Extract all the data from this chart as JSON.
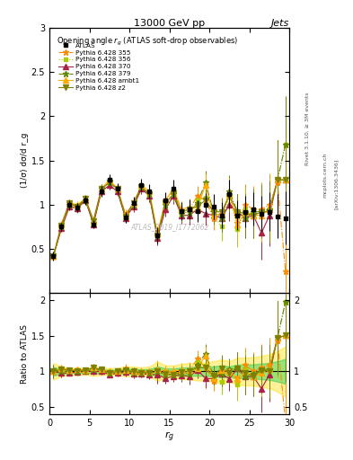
{
  "title_top": "13000 GeV pp",
  "title_right": "Jets",
  "plot_title": "Opening angle r_g (ATLAS soft-drop observables)",
  "xlabel": "r_g",
  "ylabel_main": "(1/σ) dσ/d r_g",
  "ylabel_ratio": "Ratio to ATLAS",
  "watermark": "ATLAS_2019_I1772062",
  "rivet_label": "Rivet 3.1.10, ≥ 3M events",
  "arxiv_label": "[arXiv:1306.3436]",
  "mcplots_label": "mcplots.cern.ch",
  "xlim": [
    0,
    30
  ],
  "ylim_main": [
    0,
    3.0
  ],
  "ylim_ratio": [
    0.4,
    2.1
  ],
  "xticks": [
    0,
    5,
    10,
    15,
    20,
    25,
    30
  ],
  "yticks_main": [
    0.5,
    1.0,
    1.5,
    2.0,
    2.5,
    3.0
  ],
  "yticks_ratio": [
    0.5,
    1.0,
    1.5,
    2.0
  ],
  "series": {
    "ATLAS": {
      "color": "#000000",
      "marker": "s",
      "markersize": 3.5,
      "linestyle": "none",
      "label": "ATLAS",
      "x": [
        0.5,
        1.5,
        2.5,
        3.5,
        4.5,
        5.5,
        6.5,
        7.5,
        8.5,
        9.5,
        10.5,
        11.5,
        12.5,
        13.5,
        14.5,
        15.5,
        16.5,
        17.5,
        18.5,
        19.5,
        20.5,
        21.5,
        22.5,
        23.5,
        24.5,
        25.5,
        26.5,
        27.5,
        28.5,
        29.5
      ],
      "y": [
        0.42,
        0.75,
        1.0,
        0.97,
        1.05,
        0.78,
        1.15,
        1.28,
        1.18,
        0.86,
        1.02,
        1.22,
        1.15,
        0.65,
        1.05,
        1.18,
        0.93,
        0.95,
        0.93,
        1.0,
        0.98,
        0.88,
        1.12,
        0.88,
        0.92,
        0.95,
        0.9,
        0.92,
        0.87,
        0.85
      ],
      "yerr": [
        0.05,
        0.05,
        0.05,
        0.05,
        0.05,
        0.05,
        0.06,
        0.06,
        0.06,
        0.06,
        0.07,
        0.07,
        0.08,
        0.09,
        0.09,
        0.1,
        0.1,
        0.11,
        0.12,
        0.13,
        0.14,
        0.15,
        0.16,
        0.17,
        0.18,
        0.19,
        0.2,
        0.22,
        0.25,
        0.3
      ]
    },
    "355": {
      "color": "#ff8c00",
      "marker": "*",
      "markersize": 5,
      "linestyle": "-.",
      "label": "Pythia 6.428 355",
      "x": [
        0.5,
        1.5,
        2.5,
        3.5,
        4.5,
        5.5,
        6.5,
        7.5,
        8.5,
        9.5,
        10.5,
        11.5,
        12.5,
        13.5,
        14.5,
        15.5,
        16.5,
        17.5,
        18.5,
        19.5,
        20.5,
        21.5,
        22.5,
        23.5,
        24.5,
        25.5,
        26.5,
        27.5,
        28.5,
        29.5
      ],
      "y": [
        0.42,
        0.78,
        1.02,
        0.98,
        1.05,
        0.8,
        1.18,
        1.25,
        1.18,
        0.9,
        1.0,
        1.2,
        1.12,
        0.65,
        1.05,
        1.15,
        0.92,
        0.95,
        1.1,
        1.05,
        0.85,
        0.9,
        1.1,
        0.8,
        1.0,
        0.95,
        0.95,
        1.0,
        1.25,
        0.25
      ],
      "yerr": [
        0.04,
        0.04,
        0.04,
        0.04,
        0.04,
        0.04,
        0.05,
        0.05,
        0.05,
        0.05,
        0.06,
        0.06,
        0.07,
        0.08,
        0.08,
        0.09,
        0.09,
        0.1,
        0.11,
        0.13,
        0.14,
        0.16,
        0.18,
        0.2,
        0.23,
        0.26,
        0.3,
        0.35,
        0.45,
        0.55
      ]
    },
    "356": {
      "color": "#aacc00",
      "marker": "s",
      "markersize": 3.5,
      "linestyle": ":",
      "label": "Pythia 6.428 356",
      "x": [
        0.5,
        1.5,
        2.5,
        3.5,
        4.5,
        5.5,
        6.5,
        7.5,
        8.5,
        9.5,
        10.5,
        11.5,
        12.5,
        13.5,
        14.5,
        15.5,
        16.5,
        17.5,
        18.5,
        19.5,
        20.5,
        21.5,
        22.5,
        23.5,
        24.5,
        25.5,
        26.5,
        27.5,
        28.5,
        29.5
      ],
      "y": [
        0.42,
        0.73,
        0.98,
        0.95,
        1.05,
        0.78,
        1.15,
        1.22,
        1.15,
        0.85,
        0.98,
        1.18,
        1.1,
        0.62,
        0.95,
        1.1,
        0.88,
        0.88,
        1.05,
        1.08,
        0.88,
        0.75,
        1.1,
        0.72,
        0.95,
        0.88,
        0.92,
        0.95,
        1.28,
        1.68
      ],
      "yerr": [
        0.04,
        0.04,
        0.04,
        0.04,
        0.04,
        0.04,
        0.05,
        0.05,
        0.05,
        0.05,
        0.06,
        0.06,
        0.07,
        0.08,
        0.08,
        0.09,
        0.09,
        0.1,
        0.11,
        0.13,
        0.14,
        0.16,
        0.18,
        0.2,
        0.23,
        0.26,
        0.3,
        0.35,
        0.45,
        0.55
      ]
    },
    "370": {
      "color": "#aa2244",
      "marker": "^",
      "markersize": 4,
      "linestyle": "-",
      "label": "Pythia 6.428 370",
      "x": [
        0.5,
        1.5,
        2.5,
        3.5,
        4.5,
        5.5,
        6.5,
        7.5,
        8.5,
        9.5,
        10.5,
        11.5,
        12.5,
        13.5,
        14.5,
        15.5,
        16.5,
        17.5,
        18.5,
        19.5,
        20.5,
        21.5,
        22.5,
        23.5,
        24.5,
        25.5,
        26.5,
        27.5,
        28.5,
        29.5
      ],
      "y": [
        0.42,
        0.73,
        0.98,
        0.96,
        1.05,
        0.78,
        1.15,
        1.22,
        1.15,
        0.85,
        0.98,
        1.18,
        1.1,
        0.62,
        0.95,
        1.1,
        0.88,
        0.88,
        0.95,
        0.9,
        0.88,
        0.85,
        1.0,
        0.92,
        0.85,
        0.88,
        0.68,
        0.88,
        1.28,
        1.28
      ],
      "yerr": [
        0.04,
        0.04,
        0.04,
        0.04,
        0.04,
        0.04,
        0.05,
        0.05,
        0.05,
        0.05,
        0.06,
        0.06,
        0.07,
        0.08,
        0.08,
        0.09,
        0.09,
        0.1,
        0.11,
        0.13,
        0.14,
        0.16,
        0.18,
        0.2,
        0.23,
        0.26,
        0.3,
        0.35,
        0.45,
        0.55
      ]
    },
    "379": {
      "color": "#668800",
      "marker": "*",
      "markersize": 5,
      "linestyle": "-.",
      "label": "Pythia 6.428 379",
      "x": [
        0.5,
        1.5,
        2.5,
        3.5,
        4.5,
        5.5,
        6.5,
        7.5,
        8.5,
        9.5,
        10.5,
        11.5,
        12.5,
        13.5,
        14.5,
        15.5,
        16.5,
        17.5,
        18.5,
        19.5,
        20.5,
        21.5,
        22.5,
        23.5,
        24.5,
        25.5,
        26.5,
        27.5,
        28.5,
        29.5
      ],
      "y": [
        0.42,
        0.75,
        1.0,
        0.98,
        1.05,
        0.8,
        1.18,
        1.25,
        1.18,
        0.87,
        1.0,
        1.2,
        1.12,
        0.65,
        1.0,
        1.12,
        0.9,
        0.92,
        1.02,
        1.25,
        0.92,
        0.85,
        1.15,
        0.92,
        0.85,
        0.92,
        0.92,
        0.95,
        1.28,
        1.68
      ],
      "yerr": [
        0.04,
        0.04,
        0.04,
        0.04,
        0.04,
        0.04,
        0.05,
        0.05,
        0.05,
        0.05,
        0.06,
        0.06,
        0.07,
        0.08,
        0.08,
        0.09,
        0.09,
        0.1,
        0.11,
        0.13,
        0.14,
        0.16,
        0.18,
        0.2,
        0.23,
        0.26,
        0.3,
        0.35,
        0.45,
        0.55
      ]
    },
    "ambt1": {
      "color": "#ffaa00",
      "marker": "^",
      "markersize": 4,
      "linestyle": "-",
      "label": "Pythia 6.428 ambt1",
      "x": [
        0.5,
        1.5,
        2.5,
        3.5,
        4.5,
        5.5,
        6.5,
        7.5,
        8.5,
        9.5,
        10.5,
        11.5,
        12.5,
        13.5,
        14.5,
        15.5,
        16.5,
        17.5,
        18.5,
        19.5,
        20.5,
        21.5,
        22.5,
        23.5,
        24.5,
        25.5,
        26.5,
        27.5,
        28.5,
        29.5
      ],
      "y": [
        0.42,
        0.78,
        1.02,
        1.0,
        1.07,
        0.82,
        1.18,
        1.28,
        1.18,
        0.88,
        1.02,
        1.22,
        1.15,
        0.67,
        1.05,
        1.18,
        0.95,
        0.97,
        0.97,
        1.22,
        0.88,
        0.9,
        1.12,
        0.78,
        0.92,
        0.88,
        0.88,
        0.95,
        1.28,
        1.28
      ],
      "yerr": [
        0.04,
        0.04,
        0.04,
        0.04,
        0.04,
        0.04,
        0.05,
        0.05,
        0.05,
        0.05,
        0.06,
        0.06,
        0.07,
        0.08,
        0.08,
        0.09,
        0.09,
        0.1,
        0.11,
        0.13,
        0.14,
        0.16,
        0.18,
        0.2,
        0.23,
        0.26,
        0.3,
        0.35,
        0.45,
        0.55
      ]
    },
    "z2": {
      "color": "#808000",
      "marker": "v",
      "markersize": 4,
      "linestyle": "-",
      "label": "Pythia 6.428 z2",
      "x": [
        0.5,
        1.5,
        2.5,
        3.5,
        4.5,
        5.5,
        6.5,
        7.5,
        8.5,
        9.5,
        10.5,
        11.5,
        12.5,
        13.5,
        14.5,
        15.5,
        16.5,
        17.5,
        18.5,
        19.5,
        20.5,
        21.5,
        22.5,
        23.5,
        24.5,
        25.5,
        26.5,
        27.5,
        28.5,
        29.5
      ],
      "y": [
        0.42,
        0.77,
        1.02,
        0.98,
        1.07,
        0.82,
        1.18,
        1.25,
        1.18,
        0.87,
        1.02,
        1.2,
        1.12,
        0.65,
        1.02,
        1.12,
        0.92,
        0.95,
        0.98,
        1.05,
        0.92,
        0.92,
        1.1,
        0.92,
        0.9,
        0.88,
        0.92,
        0.92,
        1.28,
        1.28
      ],
      "yerr": [
        0.04,
        0.04,
        0.04,
        0.04,
        0.04,
        0.04,
        0.05,
        0.05,
        0.05,
        0.05,
        0.06,
        0.06,
        0.07,
        0.08,
        0.08,
        0.09,
        0.09,
        0.1,
        0.11,
        0.13,
        0.14,
        0.16,
        0.18,
        0.2,
        0.23,
        0.26,
        0.3,
        0.35,
        0.45,
        0.55
      ]
    }
  },
  "band_color_green": "#00cc44",
  "band_color_yellow": "#ffdd00",
  "band_alpha": 0.4
}
